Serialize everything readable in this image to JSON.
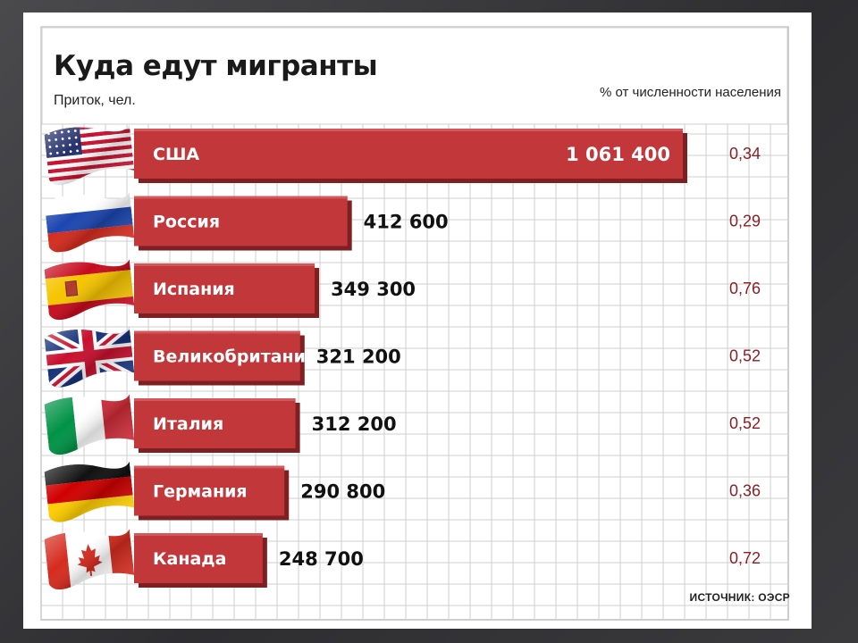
{
  "title": "Куда едут мигранты",
  "unit_left": "Приток, чел.",
  "unit_right": "% от численности населения",
  "source": "ИСТОЧНИК: ОЭСР",
  "colors": {
    "bar": "#c1373a",
    "bar_shadow": "#7e1f22",
    "percent_text": "#8b1f25",
    "grid": "#cfcfcf"
  },
  "chart_data": {
    "type": "bar",
    "orientation": "horizontal",
    "title": "Куда едут мигранты",
    "xlabel": "Приток, чел.",
    "secondary_label": "% от численности населения",
    "categories": [
      "США",
      "Россия",
      "Испания",
      "Великобритания",
      "Италия",
      "Германия",
      "Канада"
    ],
    "values": [
      1061400,
      412600,
      349300,
      321200,
      312200,
      290800,
      248700
    ],
    "value_labels": [
      "1 061 400",
      "412 600",
      "349 300",
      "321 200",
      "312 200",
      "290 800",
      "248 700"
    ],
    "percent": [
      "0,34",
      "0,29",
      "0,76",
      "0,52",
      "0,52",
      "0,36",
      "0,72"
    ],
    "flags": [
      "usa-flag-icon",
      "russia-flag-icon",
      "spain-flag-icon",
      "uk-flag-icon",
      "italy-flag-icon",
      "germany-flag-icon",
      "canada-flag-icon"
    ],
    "xlim": [
      0,
      1061400
    ],
    "grid": true,
    "legend": "none"
  }
}
